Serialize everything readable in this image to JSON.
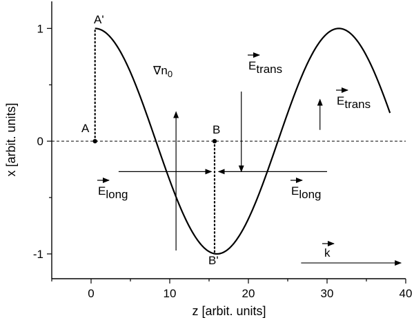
{
  "chart_data": {
    "type": "line",
    "xlabel": "z [arbit. units]",
    "ylabel": "x [arbit. units]",
    "xlim": [
      -5,
      40
    ],
    "ylim": [
      -1.22,
      1.24
    ],
    "xticks": [
      0,
      10,
      20,
      30,
      40
    ],
    "yticks": [
      1,
      0,
      -1
    ],
    "xtick_labels": [
      "0",
      "10",
      "20",
      "30",
      "40"
    ],
    "ytick_labels": [
      "1",
      "0",
      "-1"
    ],
    "series": [
      {
        "description": "cosine trajectory",
        "function": "cos",
        "x_start": 0.5,
        "x_end": 38,
        "period": 31.0
      }
    ],
    "reference_line": {
      "y": 0,
      "style": "dashed"
    },
    "points": [
      {
        "label": "A",
        "x": 0.5,
        "y": 0
      },
      {
        "label": "B",
        "x": 15.7,
        "y": 0
      }
    ],
    "point_labels": {
      "A_prime": "A'",
      "B_prime": "B'"
    },
    "vertical_dotted_lines": [
      {
        "x": 0.5,
        "y_from": 0,
        "y_to": 1
      },
      {
        "x": 15.7,
        "y_from": 0,
        "y_to": -1
      }
    ],
    "annotations": {
      "grad_n0": {
        "base": "∇n",
        "sub": "0"
      },
      "e_trans_1": {
        "base": "E",
        "sub": "trans"
      },
      "e_trans_2": {
        "base": "E",
        "sub": "trans"
      },
      "e_long_1": {
        "base": "E",
        "sub": "long"
      },
      "e_long_2": {
        "base": "E",
        "sub": "long"
      },
      "k": {
        "base": "k"
      }
    },
    "arrows": [
      {
        "name": "grad-n0-arrow",
        "x1": 10.8,
        "y1": -0.97,
        "x2": 10.8,
        "y2": 0.26
      },
      {
        "name": "e-trans-down-arrow",
        "x1": 19.1,
        "y1": 0.44,
        "x2": 19.1,
        "y2": -0.27
      },
      {
        "name": "e-trans-up-arrow",
        "x1": 29.1,
        "y1": 0.1,
        "x2": 29.1,
        "y2": 0.37
      },
      {
        "name": "e-long-right-arrow",
        "x1": 3.5,
        "y1": -0.27,
        "x2": 15.3,
        "y2": -0.27
      },
      {
        "name": "e-long-left-arrow",
        "x1": 30.0,
        "y1": -0.27,
        "x2": 16.2,
        "y2": -0.27
      },
      {
        "name": "k-arrow",
        "x1": 26.7,
        "y1": -1.08,
        "x2": 39.4,
        "y2": -1.08
      }
    ]
  }
}
